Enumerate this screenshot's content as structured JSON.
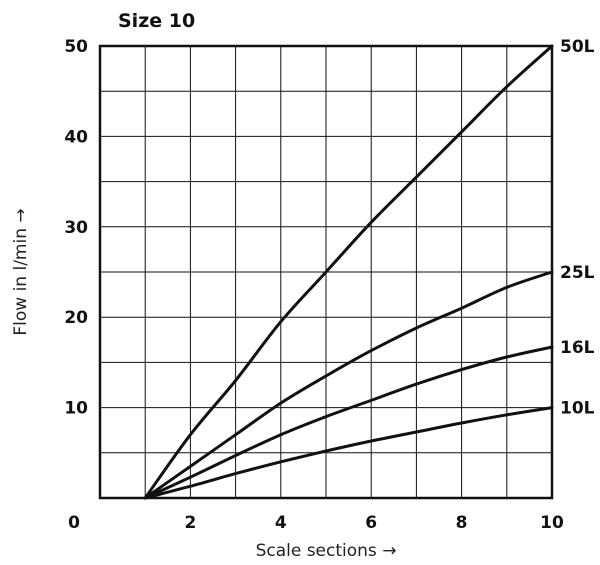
{
  "chart_data": {
    "type": "line",
    "title": "Size 10",
    "xlabel": "Scale sections →",
    "ylabel": "Flow in l/min →",
    "xlim": [
      0,
      10
    ],
    "ylim": [
      0,
      50
    ],
    "x_origin_label": "0",
    "x_ticks": [
      2,
      4,
      6,
      8,
      10
    ],
    "y_ticks": [
      10,
      20,
      30,
      40,
      50
    ],
    "grid": true,
    "series": [
      {
        "name": "50L",
        "x": [
          1,
          2,
          3,
          4,
          5,
          6,
          7,
          8,
          9,
          10
        ],
        "values": [
          0,
          7,
          13,
          19.5,
          25,
          30.5,
          35.5,
          40.5,
          45.5,
          50
        ]
      },
      {
        "name": "25L",
        "x": [
          1,
          2,
          3,
          4,
          5,
          6,
          7,
          8,
          9,
          10
        ],
        "values": [
          0,
          3.5,
          7,
          10.5,
          13.5,
          16.3,
          18.8,
          21,
          23.3,
          25
        ]
      },
      {
        "name": "16L",
        "x": [
          1,
          2,
          3,
          4,
          5,
          6,
          7,
          8,
          9,
          10
        ],
        "values": [
          0,
          2.3,
          4.7,
          7,
          9,
          10.8,
          12.6,
          14.2,
          15.6,
          16.7
        ]
      },
      {
        "name": "10L",
        "x": [
          1,
          2,
          3,
          4,
          5,
          6,
          7,
          8,
          9,
          10
        ],
        "values": [
          0,
          1.3,
          2.7,
          4,
          5.2,
          6.3,
          7.3,
          8.3,
          9.2,
          10
        ]
      }
    ]
  }
}
